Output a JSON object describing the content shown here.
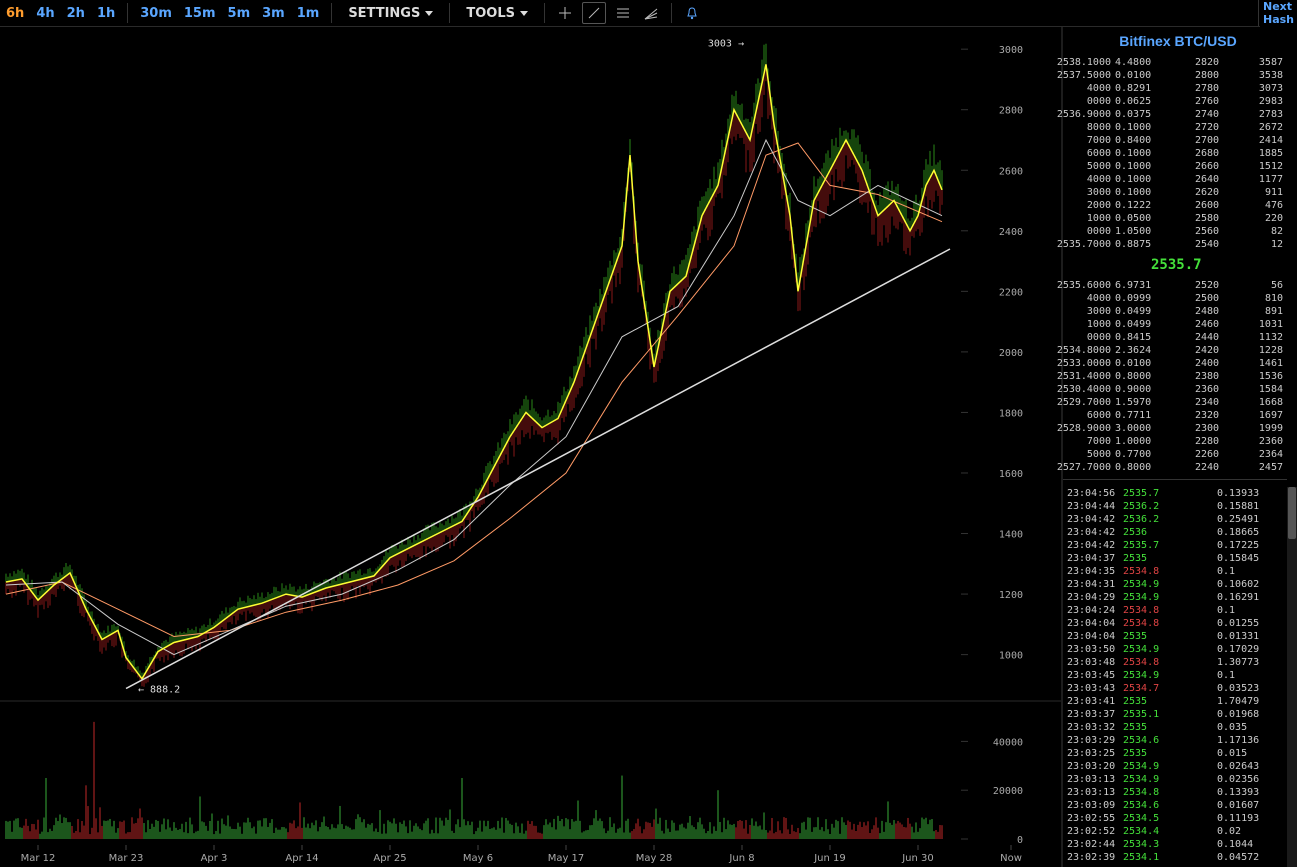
{
  "toolbar": {
    "timeframes": [
      "6h",
      "4h",
      "2h",
      "1h",
      "30m",
      "15m",
      "5m",
      "3m",
      "1m"
    ],
    "active_timeframe": "6h",
    "settings_label": "SETTINGS",
    "tools_label": "TOOLS",
    "tools": [
      "crosshair-icon",
      "trendline-icon",
      "horizontal-lines-icon",
      "fib-fan-icon"
    ],
    "alert_icon": "bell-icon"
  },
  "top_right": [
    "Next",
    "Hash"
  ],
  "chart_data": [
    {
      "type": "candlestick",
      "title": "",
      "x_ticks": [
        "Mar 12",
        "Mar 23",
        "Apr 3",
        "Apr 14",
        "Apr 25",
        "May 6",
        "May 17",
        "May 28",
        "Jun 8",
        "Jun 19",
        "Jun 30",
        "Now"
      ],
      "y_ticks": [
        1000,
        1200,
        1400,
        1600,
        1800,
        2000,
        2200,
        2400,
        2600,
        2800,
        3000
      ],
      "ylim": [
        860,
        3060
      ],
      "annotations": [
        {
          "label": "3003 →",
          "x": "Jun 8",
          "y": 3003
        },
        {
          "label": "← 888.2",
          "x": "Mar 23",
          "y": 888.2
        }
      ],
      "price_close_points": [
        [
          "Mar 8",
          1240
        ],
        [
          "Mar 10",
          1250
        ],
        [
          "Mar 12",
          1180
        ],
        [
          "Mar 14",
          1230
        ],
        [
          "Mar 16",
          1270
        ],
        [
          "Mar 18",
          1150
        ],
        [
          "Mar 20",
          1050
        ],
        [
          "Mar 22",
          1080
        ],
        [
          "Mar 23",
          990
        ],
        [
          "Mar 25",
          920
        ],
        [
          "Mar 27",
          1010
        ],
        [
          "Mar 29",
          1040
        ],
        [
          "Apr 1",
          1060
        ],
        [
          "Apr 3",
          1090
        ],
        [
          "Apr 6",
          1150
        ],
        [
          "Apr 9",
          1170
        ],
        [
          "Apr 12",
          1200
        ],
        [
          "Apr 14",
          1190
        ],
        [
          "Apr 17",
          1220
        ],
        [
          "Apr 20",
          1240
        ],
        [
          "Apr 23",
          1260
        ],
        [
          "Apr 25",
          1320
        ],
        [
          "Apr 28",
          1360
        ],
        [
          "May 1",
          1400
        ],
        [
          "May 4",
          1440
        ],
        [
          "May 6",
          1520
        ],
        [
          "May 8",
          1620
        ],
        [
          "May 10",
          1720
        ],
        [
          "May 12",
          1800
        ],
        [
          "May 14",
          1750
        ],
        [
          "May 16",
          1780
        ],
        [
          "May 18",
          1900
        ],
        [
          "May 20",
          2050
        ],
        [
          "May 22",
          2200
        ],
        [
          "May 24",
          2350
        ],
        [
          "May 25",
          2650
        ],
        [
          "May 26",
          2300
        ],
        [
          "May 28",
          1950
        ],
        [
          "May 30",
          2200
        ],
        [
          "Jun 1",
          2250
        ],
        [
          "Jun 3",
          2450
        ],
        [
          "Jun 5",
          2550
        ],
        [
          "Jun 7",
          2800
        ],
        [
          "Jun 9",
          2700
        ],
        [
          "Jun 11",
          2950
        ],
        [
          "Jun 12",
          2750
        ],
        [
          "Jun 14",
          2450
        ],
        [
          "Jun 15",
          2200
        ],
        [
          "Jun 17",
          2500
        ],
        [
          "Jun 19",
          2600
        ],
        [
          "Jun 21",
          2700
        ],
        [
          "Jun 23",
          2600
        ],
        [
          "Jun 25",
          2450
        ],
        [
          "Jun 27",
          2500
        ],
        [
          "Jun 29",
          2400
        ],
        [
          "Jun 30",
          2450
        ],
        [
          "Jul 1",
          2550
        ],
        [
          "Jul 2",
          2600
        ],
        [
          "Jul 3",
          2535
        ]
      ],
      "ma_fast": [
        [
          "Mar 8",
          1230
        ],
        [
          "Mar 15",
          1240
        ],
        [
          "Mar 22",
          1100
        ],
        [
          "Mar 29",
          1000
        ],
        [
          "Apr 5",
          1080
        ],
        [
          "Apr 12",
          1160
        ],
        [
          "Apr 19",
          1200
        ],
        [
          "Apr 26",
          1280
        ],
        [
          "May 3",
          1380
        ],
        [
          "May 10",
          1560
        ],
        [
          "May 17",
          1720
        ],
        [
          "May 24",
          2050
        ],
        [
          "May 31",
          2150
        ],
        [
          "Jun 7",
          2450
        ],
        [
          "Jun 11",
          2700
        ],
        [
          "Jun 15",
          2500
        ],
        [
          "Jun 19",
          2450
        ],
        [
          "Jun 25",
          2550
        ],
        [
          "Jul 3",
          2450
        ]
      ],
      "ma_slow": [
        [
          "Mar 8",
          1200
        ],
        [
          "Mar 15",
          1240
        ],
        [
          "Mar 22",
          1150
        ],
        [
          "Mar 29",
          1060
        ],
        [
          "Apr 5",
          1080
        ],
        [
          "Apr 12",
          1140
        ],
        [
          "Apr 19",
          1180
        ],
        [
          "Apr 26",
          1230
        ],
        [
          "May 3",
          1310
        ],
        [
          "May 10",
          1450
        ],
        [
          "May 17",
          1600
        ],
        [
          "May 24",
          1900
        ],
        [
          "May 31",
          2120
        ],
        [
          "Jun 7",
          2350
        ],
        [
          "Jun 11",
          2650
        ],
        [
          "Jun 15",
          2690
        ],
        [
          "Jun 19",
          2550
        ],
        [
          "Jun 25",
          2520
        ],
        [
          "Jul 3",
          2430
        ]
      ],
      "trendline": [
        [
          "Mar 23",
          888.2
        ],
        [
          "Jul 4",
          2340
        ]
      ],
      "colors": {
        "up": "#44e03a",
        "down": "#e04444",
        "close": "#ffff33",
        "ma_fast": "#cccccc",
        "ma_slow": "#ff9a66",
        "trendline": "#dddddd"
      }
    },
    {
      "type": "bar",
      "title": "",
      "y_ticks": [
        0,
        20000,
        40000
      ],
      "ylim": [
        0,
        50000
      ],
      "description_series": "volume",
      "peaks": [
        [
          "Mar 13",
          25000
        ],
        [
          "Mar 19",
          48000
        ],
        [
          "Mar 18",
          22000
        ],
        [
          "May 4",
          25000
        ],
        [
          "May 24",
          26000
        ],
        [
          "Jun 5",
          20000
        ]
      ]
    }
  ],
  "orderbook": {
    "title": "Bitfinex BTC/USD",
    "asks": [
      [
        "2538.1000",
        "4.4800",
        "2820",
        "3587"
      ],
      [
        "2537.5000",
        "0.0100",
        "2800",
        "3538"
      ],
      [
        "4000",
        "0.8291",
        "2780",
        "3073"
      ],
      [
        "0000",
        "0.0625",
        "2760",
        "2983"
      ],
      [
        "2536.9000",
        "0.0375",
        "2740",
        "2783"
      ],
      [
        "8000",
        "0.1000",
        "2720",
        "2672"
      ],
      [
        "7000",
        "0.8400",
        "2700",
        "2414"
      ],
      [
        "6000",
        "0.1000",
        "2680",
        "1885"
      ],
      [
        "5000",
        "0.1000",
        "2660",
        "1512"
      ],
      [
        "4000",
        "0.1000",
        "2640",
        "1177"
      ],
      [
        "3000",
        "0.1000",
        "2620",
        "911"
      ],
      [
        "2000",
        "0.1222",
        "2600",
        "476"
      ],
      [
        "1000",
        "0.0500",
        "2580",
        "220"
      ],
      [
        "0000",
        "1.0500",
        "2560",
        "82"
      ],
      [
        "2535.7000",
        "0.8875",
        "2540",
        "12"
      ]
    ],
    "mid_price": "2535.7",
    "bids": [
      [
        "2535.6000",
        "6.9731",
        "2520",
        "56"
      ],
      [
        "4000",
        "0.0999",
        "2500",
        "810"
      ],
      [
        "3000",
        "0.0499",
        "2480",
        "891"
      ],
      [
        "1000",
        "0.0499",
        "2460",
        "1031"
      ],
      [
        "0000",
        "0.8415",
        "2440",
        "1132"
      ],
      [
        "2534.8000",
        "2.3624",
        "2420",
        "1228"
      ],
      [
        "2533.0000",
        "0.0100",
        "2400",
        "1461"
      ],
      [
        "2531.4000",
        "0.8000",
        "2380",
        "1536"
      ],
      [
        "2530.4000",
        "0.9000",
        "2360",
        "1584"
      ],
      [
        "2529.7000",
        "1.5970",
        "2340",
        "1668"
      ],
      [
        "6000",
        "0.7711",
        "2320",
        "1697"
      ],
      [
        "2528.9000",
        "3.0000",
        "2300",
        "1999"
      ],
      [
        "7000",
        "1.0000",
        "2280",
        "2360"
      ],
      [
        "5000",
        "0.7700",
        "2260",
        "2364"
      ],
      [
        "2527.7000",
        "0.8000",
        "2240",
        "2457"
      ]
    ]
  },
  "trades": [
    [
      "23:04:56",
      "2535.7",
      "up",
      "0.13933"
    ],
    [
      "23:04:44",
      "2536.2",
      "up",
      "0.15881"
    ],
    [
      "23:04:42",
      "2536.2",
      "up",
      "0.25491"
    ],
    [
      "23:04:42",
      "2536",
      "up",
      "0.18665"
    ],
    [
      "23:04:42",
      "2535.7",
      "up",
      "0.17225"
    ],
    [
      "23:04:37",
      "2535",
      "up",
      "0.15845"
    ],
    [
      "23:04:35",
      "2534.8",
      "down",
      "0.1"
    ],
    [
      "23:04:31",
      "2534.9",
      "up",
      "0.10602"
    ],
    [
      "23:04:29",
      "2534.9",
      "up",
      "0.16291"
    ],
    [
      "23:04:24",
      "2534.8",
      "down",
      "0.1"
    ],
    [
      "23:04:04",
      "2534.8",
      "down",
      "0.01255"
    ],
    [
      "23:04:04",
      "2535",
      "up",
      "0.01331"
    ],
    [
      "23:03:50",
      "2534.9",
      "up",
      "0.17029"
    ],
    [
      "23:03:48",
      "2534.8",
      "down",
      "1.30773"
    ],
    [
      "23:03:45",
      "2534.9",
      "up",
      "0.1"
    ],
    [
      "23:03:43",
      "2534.7",
      "down",
      "0.03523"
    ],
    [
      "23:03:41",
      "2535",
      "up",
      "1.70479"
    ],
    [
      "23:03:37",
      "2535.1",
      "up",
      "0.01968"
    ],
    [
      "23:03:32",
      "2535",
      "up",
      "0.035"
    ],
    [
      "23:03:29",
      "2534.6",
      "up",
      "1.17136"
    ],
    [
      "23:03:25",
      "2535",
      "up",
      "0.015"
    ],
    [
      "23:03:20",
      "2534.9",
      "up",
      "0.02643"
    ],
    [
      "23:03:13",
      "2534.9",
      "up",
      "0.02356"
    ],
    [
      "23:03:13",
      "2534.8",
      "up",
      "0.13393"
    ],
    [
      "23:03:09",
      "2534.6",
      "up",
      "0.01607"
    ],
    [
      "23:02:55",
      "2534.5",
      "up",
      "0.11193"
    ],
    [
      "23:02:52",
      "2534.4",
      "up",
      "0.02"
    ],
    [
      "23:02:44",
      "2534.3",
      "up",
      "0.1044"
    ],
    [
      "23:02:39",
      "2534.1",
      "up",
      "0.04572"
    ]
  ]
}
